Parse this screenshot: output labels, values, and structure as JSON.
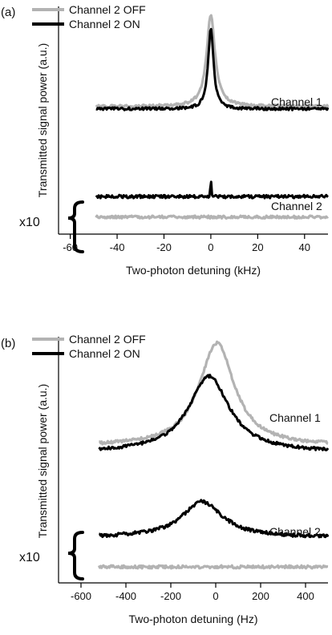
{
  "chart_data": [
    {
      "panel_label": "(a)",
      "type": "line",
      "xlabel": "Two-photon detuning (kHz)",
      "ylabel": "Transmitted signal power (a.u.)",
      "xlim": [
        -65,
        50
      ],
      "xticks": [
        -60,
        -40,
        -20,
        0,
        20,
        40
      ],
      "scale_note": "x10",
      "legend": {
        "position": "top-left",
        "entries": [
          {
            "label": "Channel 2 OFF",
            "color": "#b3b3b3"
          },
          {
            "label": "Channel 2 ON",
            "color": "#000000"
          }
        ]
      },
      "annotations": [
        "Channel 1",
        "Channel 2"
      ],
      "series": [
        {
          "name": "Channel 2 OFF",
          "channel": "Channel 1",
          "color": "#b3b3b3",
          "shape": "lorentzian",
          "x_range": [
            -49,
            50
          ],
          "center": 0,
          "baseline": 0.44,
          "peak": 0.04,
          "width": 2.2,
          "noise": 0.006
        },
        {
          "name": "Channel 2 ON",
          "channel": "Channel 1",
          "color": "#000000",
          "shape": "lorentzian",
          "x_range": [
            -49,
            50
          ],
          "center": 0,
          "baseline": 0.45,
          "peak": 0.1,
          "width": 1.4,
          "noise": 0.006
        },
        {
          "name": "Channel 2 OFF",
          "channel": "Channel 2",
          "color": "#b3b3b3",
          "shape": "flat",
          "x_range": [
            -49,
            50
          ],
          "level": 0.925,
          "noise": 0.006
        },
        {
          "name": "Channel 2 ON",
          "channel": "Channel 2",
          "color": "#000000",
          "shape": "flat-with-spike",
          "x_range": [
            -49,
            50
          ],
          "level": 0.835,
          "spike_at": 0,
          "spike_height": 0.77,
          "noise": 0.007
        }
      ]
    },
    {
      "panel_label": "(b)",
      "type": "line",
      "xlabel": "Two-photon detuning (Hz)",
      "ylabel": "Transmitted signal power (a.u.)",
      "xlim": [
        -700,
        500
      ],
      "xticks": [
        -600,
        -400,
        -200,
        0,
        200,
        400
      ],
      "scale_note": "x10",
      "legend": {
        "position": "top-left",
        "entries": [
          {
            "label": "Channel 2 OFF",
            "color": "#b3b3b3"
          },
          {
            "label": "Channel 2 ON",
            "color": "#000000"
          }
        ]
      },
      "annotations": [
        "Channel 1",
        "Channel 2"
      ],
      "series": [
        {
          "name": "Channel 2 OFF",
          "channel": "Channel 1",
          "color": "#b3b3b3",
          "shape": "lorentzian",
          "x_range": [
            -520,
            500
          ],
          "center": 5,
          "baseline": 0.445,
          "peak": 0.025,
          "width": 95,
          "noise": 0.006
        },
        {
          "name": "Channel 2 ON",
          "channel": "Channel 1",
          "color": "#000000",
          "shape": "lorentzian",
          "x_range": [
            -520,
            500
          ],
          "center": -30,
          "baseline": 0.47,
          "peak": 0.16,
          "width": 110,
          "noise": 0.006
        },
        {
          "name": "Channel 2 OFF",
          "channel": "Channel 2",
          "color": "#b3b3b3",
          "shape": "flat",
          "x_range": [
            -520,
            500
          ],
          "level": 0.935,
          "noise": 0.006
        },
        {
          "name": "Channel 2 ON",
          "channel": "Channel 2",
          "color": "#000000",
          "shape": "lorentzian",
          "x_range": [
            -520,
            500
          ],
          "center": -60,
          "baseline": 0.815,
          "peak": 0.67,
          "width": 110,
          "noise": 0.007
        }
      ]
    }
  ]
}
